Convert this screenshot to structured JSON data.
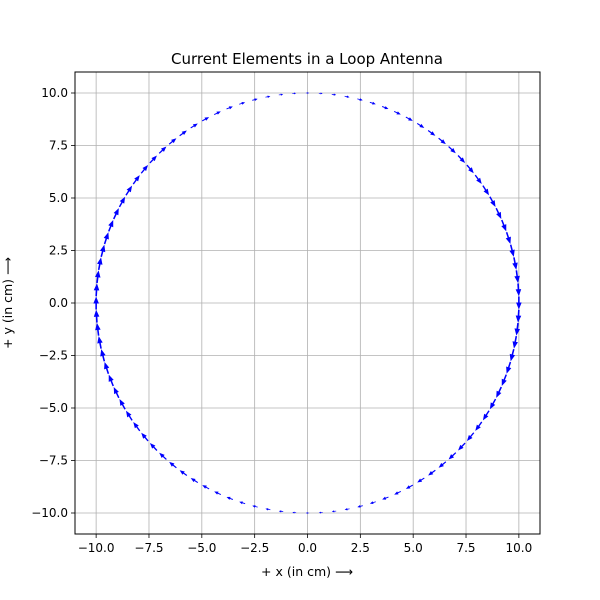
{
  "chart_data": {
    "type": "quiver",
    "title": "Current Elements in a Loop Antenna",
    "xlabel": "+ x (in cm) ⟶",
    "ylabel": "+ y (in cm) ⟶",
    "xlim": [
      -11,
      11
    ],
    "ylim": [
      -11,
      11
    ],
    "x_ticks": [
      -10,
      -7.5,
      -5,
      -2.5,
      0,
      2.5,
      5,
      7.5,
      10
    ],
    "y_ticks": [
      -10,
      -7.5,
      -5,
      -2.5,
      0,
      2.5,
      5,
      7.5,
      10
    ],
    "x_tick_labels": [
      "−10.0",
      "−7.5",
      "−5.0",
      "−2.5",
      "0.0",
      "2.5",
      "5.0",
      "7.5",
      "10.0"
    ],
    "y_tick_labels": [
      "−10.0",
      "−7.5",
      "−5.0",
      "−2.5",
      "0.0",
      "2.5",
      "5.0",
      "7.5",
      "10.0"
    ],
    "grid": true,
    "loop": {
      "center": [
        0,
        0
      ],
      "radius_cm": 10,
      "num_elements": 100,
      "direction": "clockwise"
    },
    "arrow_color": "#0000ff"
  }
}
